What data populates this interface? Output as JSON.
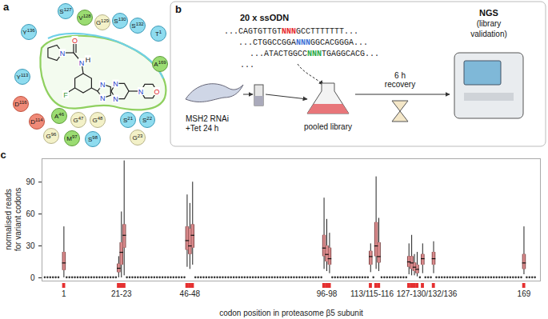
{
  "panels": {
    "a": {
      "label": "a",
      "residues": [
        "S127",
        "Y136",
        "V128",
        "G129",
        "S130",
        "S132",
        "T1",
        "A169",
        "Y113",
        "D116",
        "D114",
        "G96",
        "M97",
        "S98",
        "A46",
        "G47",
        "G48",
        "S21",
        "S22",
        "G23"
      ],
      "atoms": [
        "N",
        "O",
        "N",
        "H",
        "F",
        "N",
        "N",
        "N",
        "N",
        "N",
        "O"
      ]
    },
    "b": {
      "label": "b",
      "oligos": "20 x ssODN",
      "sequences": [
        [
          "...CAGTGTTGT",
          "NNN",
          "GCCTTTTTTT..."
        ],
        [
          "...CTGGCCGGA",
          "NNN",
          "GGCACGGGA..."
        ],
        [
          "...ATACTGGCC",
          "NNN",
          "TGAGGCACG..."
        ],
        [
          "..."
        ]
      ],
      "cells": [
        "MSH2 RNAi",
        "+Tet 24 h"
      ],
      "library": "pooled library",
      "recovery": [
        "6 h",
        "recovery"
      ],
      "readout": [
        "NGS",
        "(library",
        "validation)"
      ]
    },
    "c": {
      "label": "c"
    }
  },
  "chart_data": {
    "type": "box",
    "xlabel": "codon position in proteasome β5 subunit",
    "ylabel": "normalised reads for variant codons",
    "xlim": [
      -7,
      175
    ],
    "ylim": [
      -3,
      112
    ],
    "yticks": [
      0,
      30,
      60,
      90
    ],
    "xticks": [
      1,
      {
        "value": 22,
        "label": "21-23"
      },
      {
        "value": 47,
        "label": "46-48"
      },
      {
        "value": 97,
        "label": "96-98"
      },
      {
        "value": 113.5,
        "label": "113/115-116"
      },
      {
        "value": 133.5,
        "label": "127-130/132/136"
      },
      169
    ],
    "color": "#d98a8c",
    "boxes": {
      "x": [
        1,
        21,
        22,
        23,
        46,
        47,
        48,
        96,
        97,
        98,
        113,
        115,
        116,
        127,
        128,
        129,
        130,
        132,
        136,
        169
      ],
      "min": [
        0,
        0,
        0,
        2,
        10,
        8,
        12,
        8,
        6,
        4,
        5,
        8,
        6,
        3,
        2,
        2,
        1,
        4,
        4,
        3
      ],
      "q1": [
        7,
        5,
        12,
        28,
        26,
        22,
        28,
        20,
        15,
        12,
        12,
        20,
        14,
        10,
        8,
        6,
        4,
        12,
        12,
        8
      ],
      "median": [
        14,
        9,
        24,
        40,
        35,
        30,
        40,
        28,
        22,
        18,
        20,
        30,
        20,
        15,
        14,
        10,
        8,
        18,
        18,
        14
      ],
      "q3": [
        24,
        13,
        33,
        50,
        48,
        46,
        50,
        40,
        30,
        28,
        25,
        52,
        33,
        20,
        20,
        14,
        12,
        22,
        24,
        22
      ],
      "max": [
        48,
        20,
        62,
        110,
        78,
        70,
        90,
        75,
        55,
        42,
        32,
        95,
        56,
        32,
        40,
        22,
        24,
        32,
        34,
        48
      ]
    },
    "background": {
      "x": [
        -6,
        -5,
        -4,
        -3,
        -2,
        -1,
        2,
        3,
        4,
        5,
        6,
        7,
        8,
        9,
        10,
        11,
        12,
        13,
        14,
        15,
        16,
        17,
        18,
        19,
        20,
        24,
        25,
        26,
        27,
        28,
        29,
        30,
        31,
        32,
        33,
        34,
        35,
        36,
        37,
        38,
        39,
        40,
        41,
        42,
        43,
        44,
        45,
        49,
        50,
        51,
        52,
        53,
        54,
        55,
        56,
        57,
        58,
        59,
        60,
        61,
        62,
        63,
        64,
        65,
        66,
        67,
        68,
        69,
        70,
        71,
        72,
        73,
        74,
        75,
        76,
        77,
        78,
        79,
        80,
        81,
        82,
        83,
        84,
        85,
        86,
        87,
        88,
        89,
        90,
        91,
        92,
        93,
        94,
        95,
        99,
        100,
        101,
        102,
        103,
        104,
        105,
        106,
        107,
        108,
        109,
        110,
        111,
        112,
        114,
        117,
        118,
        119,
        120,
        121,
        122,
        123,
        124,
        125,
        126,
        131,
        133,
        134,
        135,
        137,
        138,
        139,
        140,
        141,
        142,
        143,
        144,
        145,
        146,
        147,
        148,
        149,
        150,
        151,
        152,
        153,
        154,
        155,
        156,
        157,
        158,
        159,
        160,
        161,
        162,
        163,
        164,
        165,
        166,
        167,
        168,
        170,
        171,
        172,
        173
      ],
      "values": [
        0.5,
        0.5,
        0.5,
        0.5,
        0.5,
        0.5,
        0.5,
        0.5,
        0.5,
        0.5,
        0.5,
        0.5,
        0.5,
        0.5,
        0.5,
        0.5,
        0.5,
        0.5,
        0.5,
        0.5,
        0.5,
        0.5,
        0.5,
        0.5,
        0.5,
        0.5,
        0.5,
        0.5,
        0.5,
        0.5,
        0.5,
        0.5,
        0.5,
        0.5,
        0.5,
        0.5,
        0.5,
        0.5,
        0.5,
        0.5,
        0.5,
        0.5,
        0.5,
        0.5,
        0.5,
        0.5,
        0.5,
        0.5,
        0.5,
        0.5,
        0.5,
        0.5,
        0.5,
        0.5,
        0.5,
        0.5,
        0.5,
        0.5,
        0.5,
        0.5,
        0.5,
        0.5,
        0.5,
        0.5,
        0.5,
        0.5,
        0.5,
        0.5,
        0.5,
        0.5,
        0.5,
        0.5,
        0.5,
        0.5,
        0.5,
        0.5,
        0.5,
        0.5,
        0.5,
        0.5,
        0.5,
        0.5,
        0.5,
        0.5,
        0.5,
        0.5,
        0.5,
        0.5,
        0.5,
        0.5,
        0.5,
        0.5,
        0.5,
        0.5,
        0.5,
        0.5,
        0.5,
        0.5,
        0.5,
        0.5,
        0.5,
        0.5,
        0.5,
        0.5,
        0.5,
        0.5,
        0.5,
        0.5,
        0.5,
        0.5,
        0.5,
        0.5,
        0.5,
        0.5,
        0.5,
        0.5,
        0.5,
        0.5,
        0.5,
        0.5,
        0.5,
        0.5,
        0.5,
        0.5,
        0.5,
        0.5,
        0.5,
        0.5,
        0.5,
        0.5,
        0.5,
        0.5,
        0.5,
        0.5,
        0.5,
        0.5,
        0.5,
        0.5,
        0.5,
        0.5,
        0.5,
        0.5,
        0.5,
        0.5,
        0.5,
        0.5,
        0.5,
        0.5,
        0.5,
        0.5,
        0.5,
        0.5,
        0.5,
        0.5,
        0.5,
        0.5,
        0.5,
        0.5,
        0.5
      ]
    }
  }
}
